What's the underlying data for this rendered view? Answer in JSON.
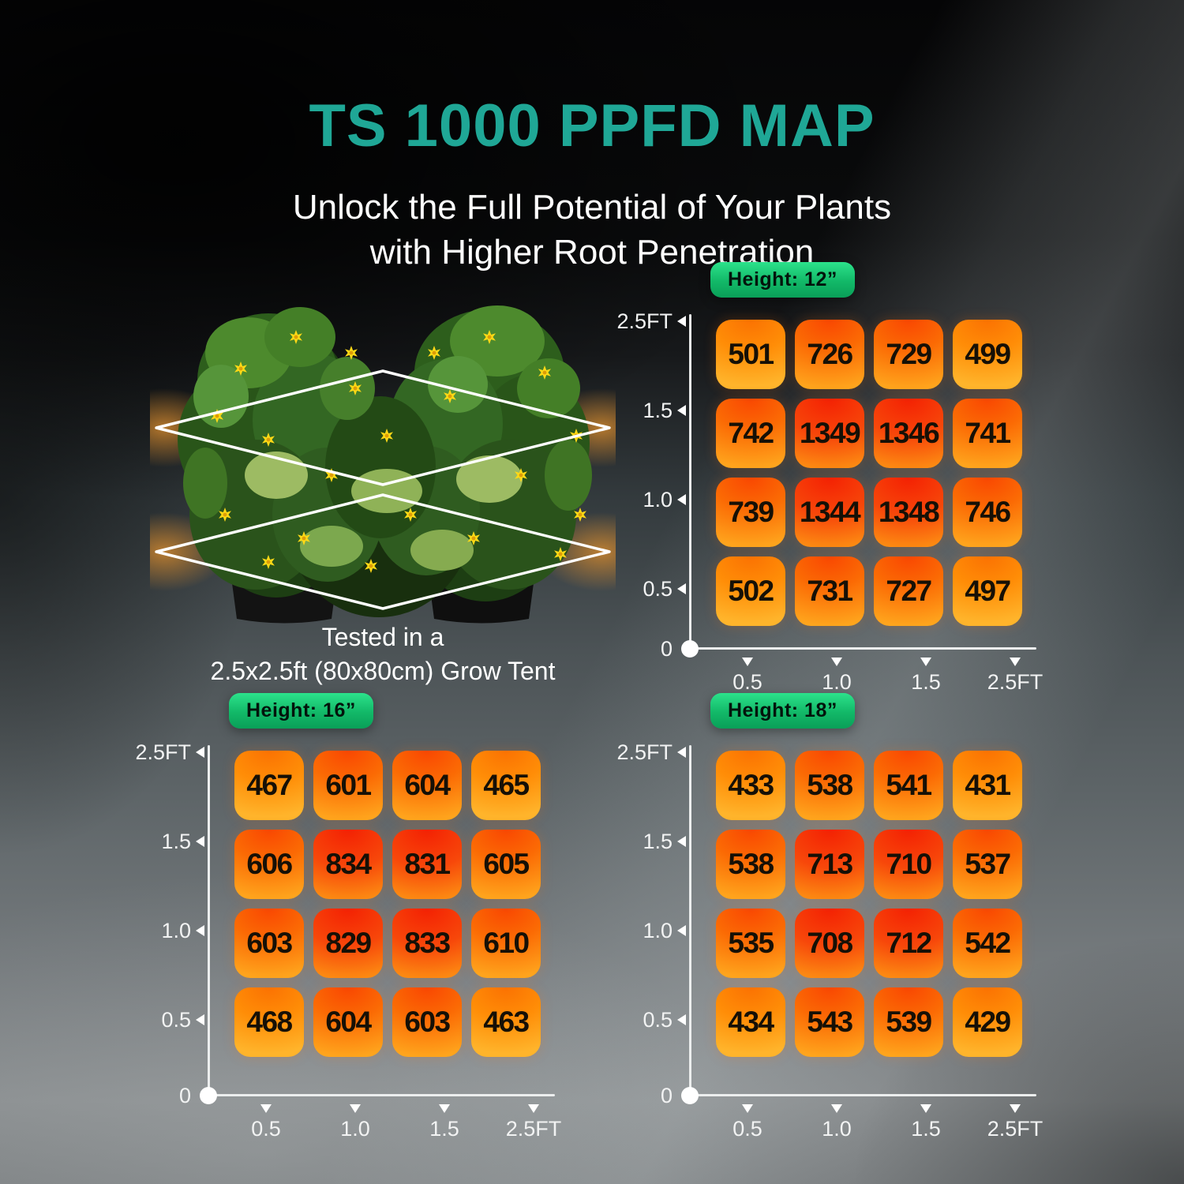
{
  "page": {
    "title": "TS 1000 PPFD MAP",
    "subtitle_line1": "Unlock the Full Potential of Your Plants",
    "subtitle_line2": "with Higher Root Penetration",
    "figure_caption_line1": "Tested in a",
    "figure_caption_line2": "2.5x2.5ft (80x80cm) Grow Tent"
  },
  "colors": {
    "title_teal": "#1FA796",
    "badge_green_top": "#2CE28B",
    "badge_green_bottom": "#0A9F58",
    "cell_orange_low": "#FF9712",
    "cell_orange_mid": "#FB6A04",
    "cell_red_high": "#F42103",
    "axis_white": "#F2F3F3",
    "value_text": "#161006"
  },
  "chart_data": [
    {
      "type": "heatmap",
      "label": "Height: 12”",
      "x_tick_labels": [
        "0.5",
        "1.0",
        "1.5",
        "2.5FT"
      ],
      "y_tick_labels": [
        "2.5FT",
        "1.5",
        "1.0",
        "0.5"
      ],
      "origin_label": "0",
      "x_ft": [
        0.5,
        1.0,
        1.5,
        2.5
      ],
      "y_ft": [
        2.5,
        1.5,
        1.0,
        0.5
      ],
      "values": [
        [
          501,
          726,
          729,
          499
        ],
        [
          742,
          1349,
          1346,
          741
        ],
        [
          739,
          1344,
          1348,
          746
        ],
        [
          502,
          731,
          727,
          497
        ]
      ]
    },
    {
      "type": "heatmap",
      "label": "Height: 16”",
      "x_tick_labels": [
        "0.5",
        "1.0",
        "1.5",
        "2.5FT"
      ],
      "y_tick_labels": [
        "2.5FT",
        "1.5",
        "1.0",
        "0.5"
      ],
      "origin_label": "0",
      "x_ft": [
        0.5,
        1.0,
        1.5,
        2.5
      ],
      "y_ft": [
        2.5,
        1.5,
        1.0,
        0.5
      ],
      "values": [
        [
          467,
          601,
          604,
          465
        ],
        [
          606,
          834,
          831,
          605
        ],
        [
          603,
          829,
          833,
          610
        ],
        [
          468,
          604,
          603,
          463
        ]
      ]
    },
    {
      "type": "heatmap",
      "label": "Height: 18”",
      "x_tick_labels": [
        "0.5",
        "1.0",
        "1.5",
        "2.5FT"
      ],
      "y_tick_labels": [
        "2.5FT",
        "1.5",
        "1.0",
        "0.5"
      ],
      "origin_label": "0",
      "x_ft": [
        0.5,
        1.0,
        1.5,
        2.5
      ],
      "y_ft": [
        2.5,
        1.5,
        1.0,
        0.5
      ],
      "values": [
        [
          433,
          538,
          541,
          431
        ],
        [
          538,
          713,
          710,
          537
        ],
        [
          535,
          708,
          712,
          542
        ],
        [
          434,
          543,
          539,
          429
        ]
      ]
    }
  ]
}
